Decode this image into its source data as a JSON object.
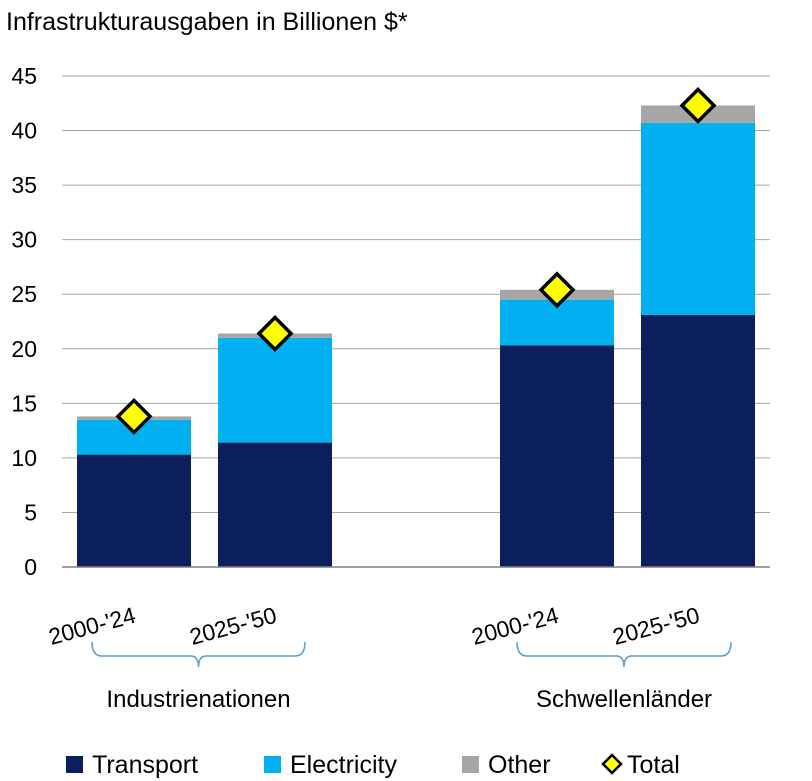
{
  "chart_data": {
    "type": "stacked-bar",
    "title": "Infrastrukturausgaben in Billionen $*",
    "xlabel": "",
    "ylabel": "",
    "ylim": [
      0,
      45
    ],
    "yticks": [
      0,
      5,
      10,
      15,
      20,
      25,
      30,
      35,
      40,
      45
    ],
    "grid": true,
    "groups": [
      {
        "name": "Industrienationen",
        "categories": [
          "2000-'24",
          "2025-'50"
        ]
      },
      {
        "name": "Schwellenländer",
        "categories": [
          "2000-'24",
          "2025-'50"
        ]
      }
    ],
    "categories": [
      "2000-'24",
      "2025-'50",
      "2000-'24",
      "2025-'50"
    ],
    "series": [
      {
        "name": "Transport",
        "color": "#0a1f5c",
        "values": [
          10.3,
          11.4,
          20.3,
          23.1
        ]
      },
      {
        "name": "Electricity",
        "color": "#00b0f0",
        "values": [
          3.2,
          9.6,
          4.2,
          17.6
        ]
      },
      {
        "name": "Other",
        "color": "#a6a6a6",
        "values": [
          0.3,
          0.4,
          0.9,
          1.6
        ]
      }
    ],
    "total": {
      "name": "Total",
      "color": "#ffff00",
      "values": [
        13.8,
        21.4,
        25.4,
        42.3
      ]
    },
    "legend_position": "bottom"
  }
}
